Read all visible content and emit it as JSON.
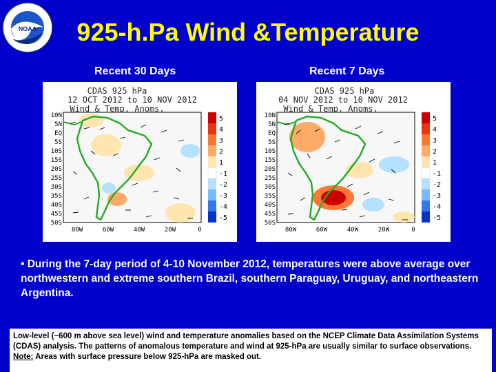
{
  "logo": {
    "icon": "noaa-logo",
    "seal_text": "NATIONAL OCEANIC AND ATMOSPHERIC ADMINISTRATION · U.S. DEPARTMENT OF COMMERCE",
    "center_text": "NOAA"
  },
  "title": "925-h.Pa Wind &Temperature",
  "panels": [
    {
      "caption": "Recent 30 Days",
      "header_line1": "CDAS 925 hPa",
      "header_line2": "12 OCT 2012 to 10 NOV 2012",
      "header_line3": "Wind & Temp. Anoms."
    },
    {
      "caption": "Recent 7 Days",
      "header_line1": "CDAS 925 hPa",
      "header_line2": "04 NOV 2012 to 10 NOV 2012",
      "header_line3": "Wind & Temp. Anoms."
    }
  ],
  "map_axes": {
    "lat_labels": [
      "10N",
      "5N",
      "EQ",
      "5S",
      "10S",
      "15S",
      "20S",
      "25S",
      "30S",
      "35S",
      "40S",
      "45S",
      "50S"
    ],
    "lon_labels": [
      "80W",
      "60W",
      "40W",
      "20W",
      "0"
    ]
  },
  "colorbar": {
    "labels": [
      "5",
      "4",
      "3",
      "2",
      "1",
      "-1",
      "-2",
      "-3",
      "-4",
      "-5"
    ],
    "colors": [
      "#cc0000",
      "#ee3311",
      "#ff7733",
      "#ffaa66",
      "#ffe5b0",
      "#ffffff",
      "#b5e0ff",
      "#77bbff",
      "#3377ee",
      "#0033cc"
    ]
  },
  "bullet_text": "• During the 7-day period of  4-10 November 2012, temperatures were  above  average over northwestern and extreme southern Brazil, southern Paraguay, Uruguay, and northeastern Argentina.",
  "note": {
    "line1": "Low-level (~600 m above sea level) wind and temperature anomalies based on the NCEP Climate Data Assimilation Systems (CDAS) analysis. The patterns of anomalous temperature and wind at 925-hPa are usually similar to surface observations.",
    "label": "Note:",
    "line2": " Areas with surface pressure below 925-hPa are masked out."
  }
}
